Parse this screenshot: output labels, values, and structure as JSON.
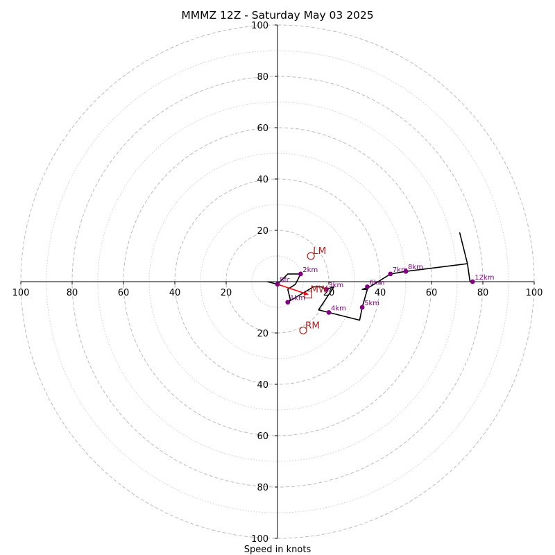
{
  "chart_data": {
    "type": "hodograph",
    "title": "MMMZ 12Z - Saturday May 03 2025",
    "xlabel": "Speed in knots",
    "axis_range": [
      -100,
      100
    ],
    "tick_labels": [
      "100",
      "80",
      "60",
      "40",
      "20",
      "20",
      "40",
      "60",
      "80",
      "100"
    ],
    "tick_values": [
      -100,
      -80,
      -60,
      -40,
      -20,
      20,
      40,
      60,
      80,
      100
    ],
    "rings_major": [
      20,
      40,
      60,
      80,
      100
    ],
    "rings_minor": [
      10,
      30,
      50,
      70,
      90
    ],
    "grid": true,
    "colors": {
      "hodograph": "#000000",
      "height_points": "#800080",
      "storm_motion": "#b22222",
      "mean_wind_vector": "#ff0000",
      "grid": "#bbbbbb"
    },
    "hodograph_trace": [
      [
        -4,
        0
      ],
      [
        0,
        -1
      ],
      [
        4,
        3
      ],
      [
        9,
        3
      ],
      [
        7,
        -1
      ],
      [
        4,
        -3
      ],
      [
        5,
        -7
      ],
      [
        4,
        -8
      ],
      [
        9,
        -5
      ],
      [
        14,
        -2
      ],
      [
        17,
        -2
      ],
      [
        19,
        -3
      ],
      [
        22,
        -2
      ],
      [
        16,
        -11
      ],
      [
        20,
        -12
      ],
      [
        32,
        -15
      ],
      [
        33,
        -10
      ],
      [
        35,
        -3
      ],
      [
        33,
        -3
      ],
      [
        36,
        -2
      ],
      [
        44,
        3
      ],
      [
        50,
        4
      ],
      [
        74,
        7
      ],
      [
        71,
        19
      ],
      [
        74,
        7
      ],
      [
        75,
        0
      ]
    ],
    "height_points": [
      {
        "label": "Sfc",
        "u": 0,
        "v": -1
      },
      {
        "label": "1km",
        "u": 4,
        "v": -8
      },
      {
        "label": "2km",
        "u": 9,
        "v": 3
      },
      {
        "label": "3km",
        "u": 19,
        "v": -3
      },
      {
        "label": "4km",
        "u": 20,
        "v": -12
      },
      {
        "label": "5km",
        "u": 33,
        "v": -10
      },
      {
        "label": "6km",
        "u": 35,
        "v": -2
      },
      {
        "label": "7km",
        "u": 44,
        "v": 3
      },
      {
        "label": "8km",
        "u": 50,
        "v": 4
      },
      {
        "label": "12km",
        "u": 76,
        "v": 0
      }
    ],
    "storm_motion": [
      {
        "label": "LM",
        "u": 13,
        "v": 10
      },
      {
        "label": "MW",
        "u": 12,
        "v": -5
      },
      {
        "label": "RM",
        "u": 10,
        "v": -19
      }
    ]
  }
}
